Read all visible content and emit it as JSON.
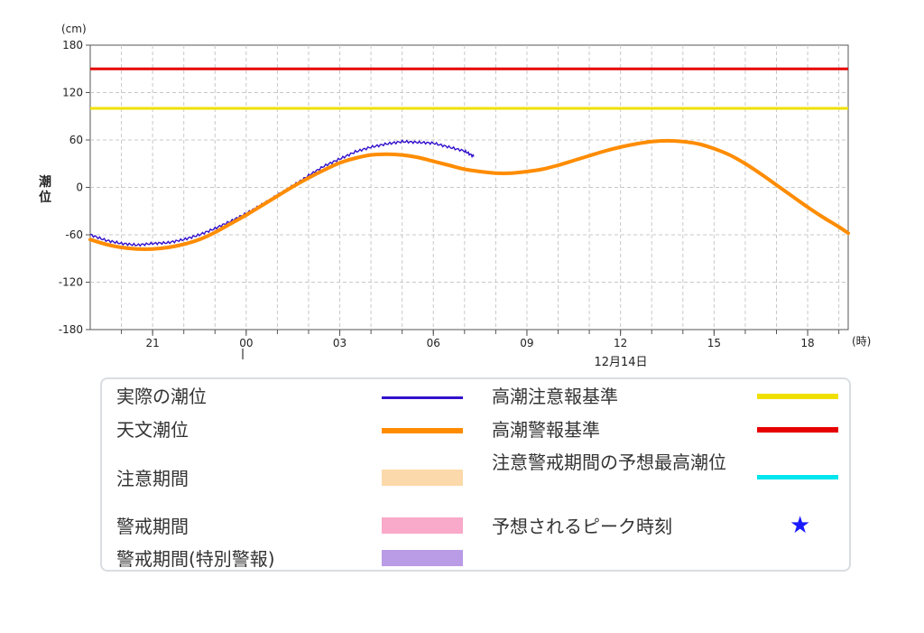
{
  "chart_data": {
    "type": "line",
    "y_unit": "(cm)",
    "ylabel": "潮位",
    "x_unit": "(時)",
    "ylim": [
      -180,
      180
    ],
    "y_ticks": [
      180,
      120,
      60,
      0,
      -60,
      -120,
      -180
    ],
    "xlim": [
      19.0,
      43.3
    ],
    "x_ticks": [
      {
        "x": 21,
        "label": "21"
      },
      {
        "x": 24,
        "label": "00"
      },
      {
        "x": 27,
        "label": "03"
      },
      {
        "x": 30,
        "label": "06"
      },
      {
        "x": 33,
        "label": "09"
      },
      {
        "x": 36,
        "label": "12"
      },
      {
        "x": 39,
        "label": "15"
      },
      {
        "x": 42,
        "label": "18"
      }
    ],
    "date_label": "12月14日",
    "series": [
      {
        "name": "実際の潮位",
        "color": "#3311cc",
        "x": [
          19.0,
          19.5,
          20.0,
          20.5,
          21.0,
          21.5,
          22.0,
          22.5,
          23.0,
          23.5,
          24.0,
          24.5,
          25.0,
          25.5,
          26.0,
          26.5,
          27.0,
          27.5,
          28.0,
          28.5,
          29.0,
          29.5,
          30.0,
          30.5,
          31.0,
          31.3
        ],
        "y": [
          -60,
          -67,
          -71,
          -73,
          -71,
          -70,
          -66,
          -60,
          -52,
          -43,
          -33,
          -22,
          -10,
          2,
          15,
          27,
          36,
          45,
          51,
          55,
          58,
          57,
          56,
          51,
          46,
          39
        ]
      },
      {
        "name": "天文潮位",
        "color": "#ff8c00",
        "x": [
          19.0,
          19.5,
          20.0,
          20.5,
          21.0,
          21.5,
          22.0,
          22.5,
          23.0,
          23.5,
          24.0,
          24.5,
          25.0,
          25.5,
          26.0,
          26.5,
          27.0,
          27.5,
          28.0,
          28.5,
          29.0,
          29.5,
          30.0,
          30.5,
          31.0,
          31.5,
          32.0,
          32.5,
          33.0,
          33.5,
          34.0,
          34.5,
          35.0,
          35.5,
          36.0,
          36.5,
          37.0,
          37.5,
          38.0,
          38.5,
          39.0,
          39.5,
          40.0,
          40.5,
          41.0,
          41.5,
          42.0,
          42.5,
          43.0,
          43.3
        ],
        "y": [
          -66,
          -72,
          -76,
          -78,
          -78,
          -76,
          -72,
          -66,
          -57,
          -46,
          -35,
          -23,
          -11,
          1,
          12,
          22,
          31,
          37,
          41,
          42,
          41,
          38,
          33,
          28,
          23,
          20,
          18,
          18,
          20,
          23,
          28,
          34,
          40,
          46,
          51,
          55,
          58,
          59,
          58,
          55,
          49,
          41,
          30,
          17,
          3,
          -11,
          -25,
          -38,
          -50,
          -58
        ]
      }
    ],
    "hlines": [
      {
        "name": "高潮警報基準",
        "y": 150,
        "color": "#e60000"
      },
      {
        "name": "高潮注意報基準",
        "y": 100,
        "color": "#f0e000"
      }
    ]
  },
  "legend": {
    "items": [
      {
        "label": "実際の潮位",
        "kind": "line",
        "color": "#3311cc"
      },
      {
        "label": "天文潮位",
        "kind": "line",
        "color": "#ff8c00"
      },
      {
        "label": "注意期間",
        "kind": "band",
        "color": "#fcd9aa"
      },
      {
        "label": "警戒期間",
        "kind": "band",
        "color": "#f9a9c9"
      },
      {
        "label": "警戒期間(特別警報)",
        "kind": "band",
        "color": "#b99be6"
      },
      {
        "label": "高潮注意報基準",
        "kind": "line",
        "color": "#f0e000"
      },
      {
        "label": "高潮警報基準",
        "kind": "line",
        "color": "#e60000"
      },
      {
        "label": "注意警戒期間の予想最高潮位",
        "kind": "line",
        "color": "#00e5ee"
      },
      {
        "label": "予想されるピーク時刻",
        "kind": "star",
        "color": "#1a1aff",
        "symbol": "★"
      }
    ]
  }
}
